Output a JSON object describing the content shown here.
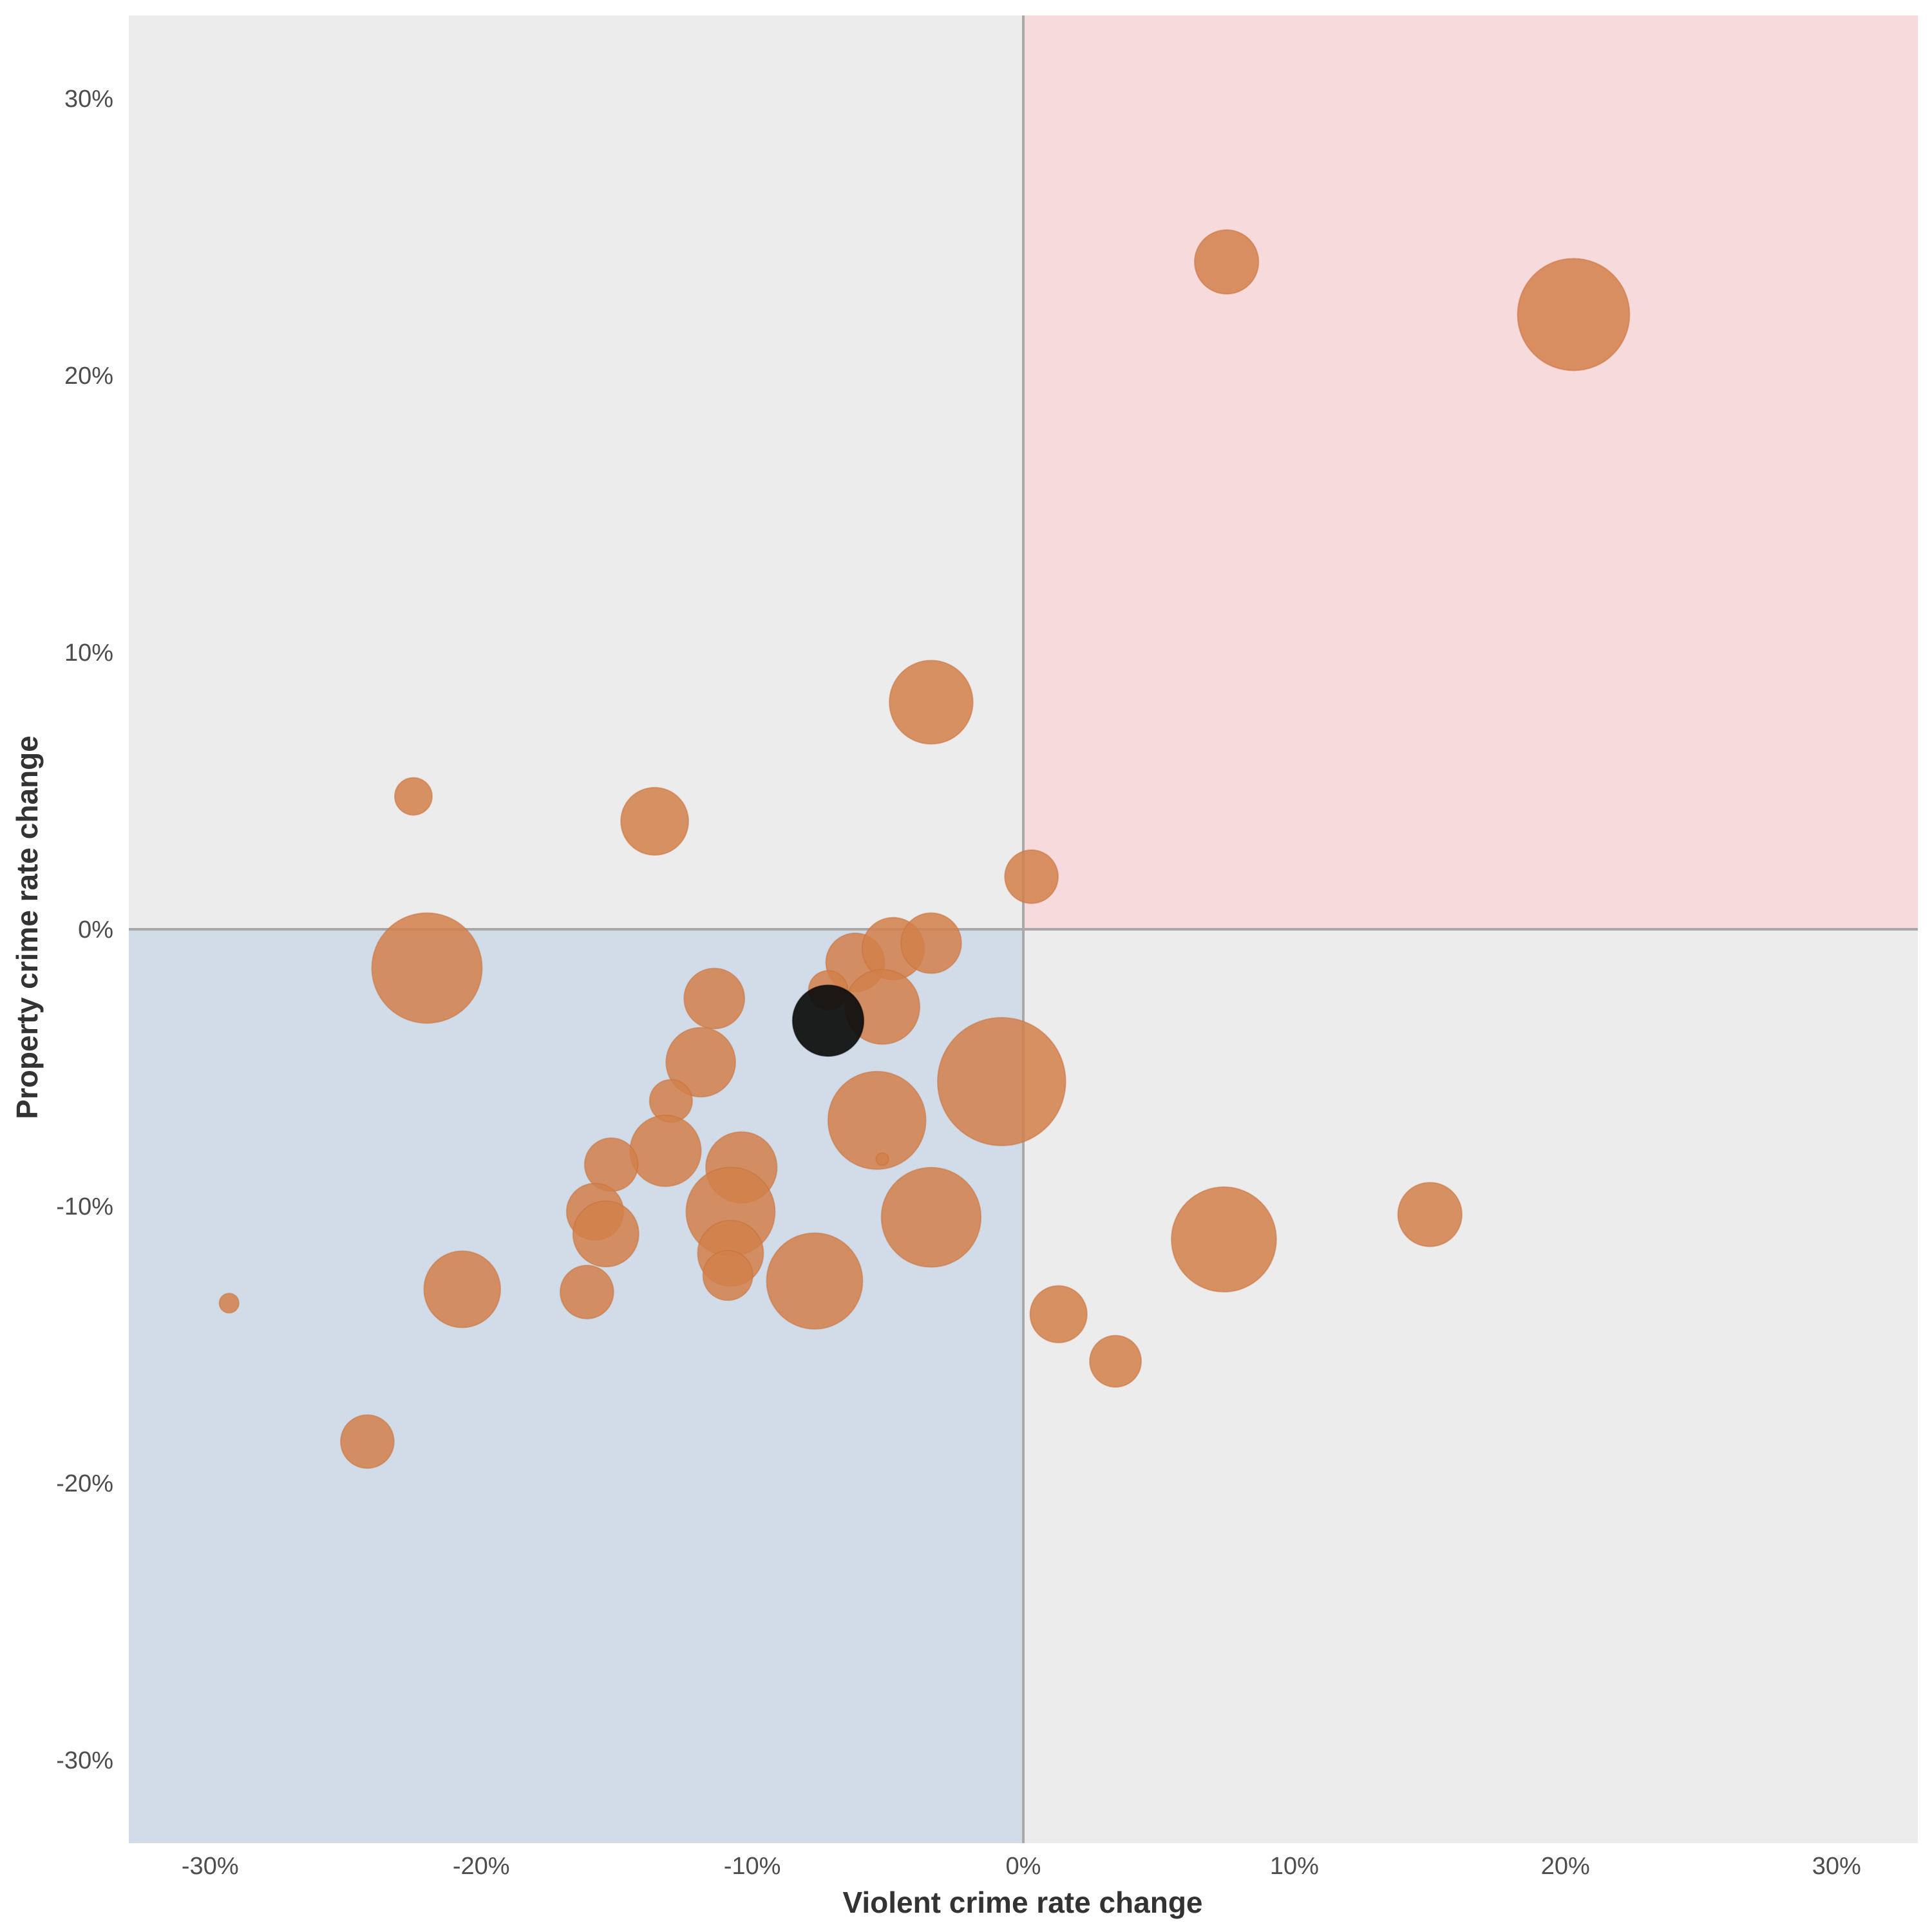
{
  "chart_data": {
    "type": "scatter",
    "title": "",
    "xlabel": "Violent crime rate change",
    "ylabel": "Property crime rate change",
    "xlim": [
      -0.33,
      0.33
    ],
    "ylim": [
      -0.33,
      0.33
    ],
    "x_ticks": [
      -0.3,
      -0.2,
      -0.1,
      0,
      0.1,
      0.2,
      0.3
    ],
    "y_ticks": [
      -0.3,
      -0.2,
      -0.1,
      0,
      0.1,
      0.2,
      0.3
    ],
    "x_tick_labels": [
      "-30%",
      "-20%",
      "-10%",
      "0%",
      "10%",
      "20%",
      "30%"
    ],
    "y_tick_labels": [
      "-30%",
      "-20%",
      "-10%",
      "0%",
      "10%",
      "20%",
      "30%"
    ],
    "grid": false,
    "legend": "none",
    "size_encoding": "bubble area",
    "quadrant_colors": {
      "both_decrease": "#d1dce8",
      "both_increase": "#f7dadc",
      "mixed": "#ececec"
    },
    "bubble_color": "#d2804a",
    "highlight_color": "#111111",
    "series": [
      {
        "points": [
          {
            "x": 0.075,
            "y": 0.241,
            "size": 0.36
          },
          {
            "x": 0.203,
            "y": 0.222,
            "size": 0.63
          },
          {
            "x": -0.034,
            "y": 0.082,
            "size": 0.47
          },
          {
            "x": -0.225,
            "y": 0.048,
            "size": 0.21
          },
          {
            "x": -0.136,
            "y": 0.039,
            "size": 0.38
          },
          {
            "x": 0.003,
            "y": 0.019,
            "size": 0.3
          },
          {
            "x": -0.22,
            "y": -0.014,
            "size": 0.62
          },
          {
            "x": -0.062,
            "y": -0.012,
            "size": 0.33
          },
          {
            "x": -0.048,
            "y": -0.007,
            "size": 0.35
          },
          {
            "x": -0.034,
            "y": -0.005,
            "size": 0.34
          },
          {
            "x": -0.114,
            "y": -0.025,
            "size": 0.34
          },
          {
            "x": -0.072,
            "y": -0.022,
            "size": 0.22
          },
          {
            "x": -0.052,
            "y": -0.028,
            "size": 0.42
          },
          {
            "x": -0.119,
            "y": -0.048,
            "size": 0.39
          },
          {
            "x": -0.008,
            "y": -0.055,
            "size": 0.72
          },
          {
            "x": -0.13,
            "y": -0.062,
            "size": 0.24
          },
          {
            "x": -0.054,
            "y": -0.069,
            "size": 0.55
          },
          {
            "x": -0.132,
            "y": -0.08,
            "size": 0.4
          },
          {
            "x": -0.152,
            "y": -0.085,
            "size": 0.3
          },
          {
            "x": -0.052,
            "y": -0.083,
            "size": 0.07
          },
          {
            "x": -0.104,
            "y": -0.086,
            "size": 0.4
          },
          {
            "x": -0.158,
            "y": -0.102,
            "size": 0.32
          },
          {
            "x": -0.108,
            "y": -0.102,
            "size": 0.5
          },
          {
            "x": -0.154,
            "y": -0.11,
            "size": 0.37
          },
          {
            "x": -0.034,
            "y": -0.104,
            "size": 0.56
          },
          {
            "x": 0.074,
            "y": -0.112,
            "size": 0.59
          },
          {
            "x": 0.15,
            "y": -0.103,
            "size": 0.36
          },
          {
            "x": -0.108,
            "y": -0.117,
            "size": 0.37
          },
          {
            "x": -0.109,
            "y": -0.125,
            "size": 0.28
          },
          {
            "x": -0.077,
            "y": -0.127,
            "size": 0.54
          },
          {
            "x": -0.207,
            "y": -0.13,
            "size": 0.43
          },
          {
            "x": -0.161,
            "y": -0.131,
            "size": 0.3
          },
          {
            "x": -0.293,
            "y": -0.135,
            "size": 0.11
          },
          {
            "x": 0.013,
            "y": -0.139,
            "size": 0.32
          },
          {
            "x": 0.034,
            "y": -0.156,
            "size": 0.29
          },
          {
            "x": -0.242,
            "y": -0.185,
            "size": 0.3
          }
        ]
      },
      {
        "points": [
          {
            "x": -0.072,
            "y": -0.033,
            "size": 0.4,
            "highlight": true
          }
        ]
      }
    ]
  }
}
